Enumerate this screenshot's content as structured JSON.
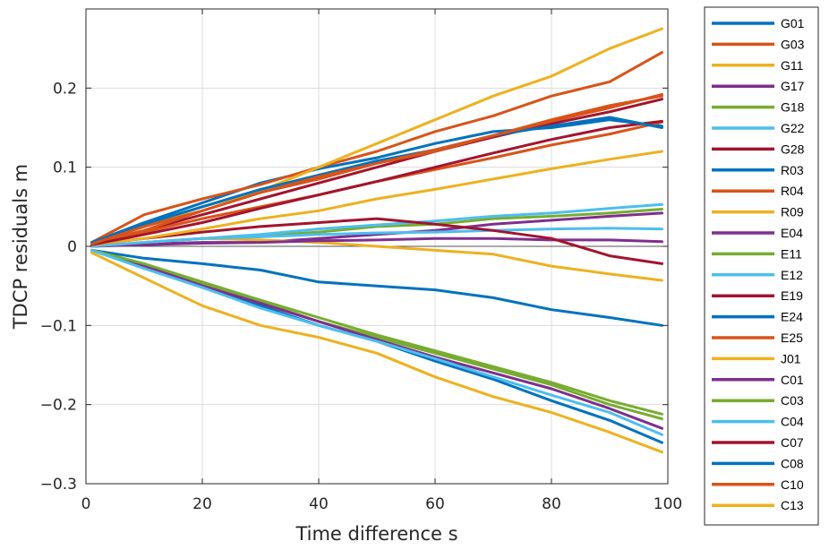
{
  "chart_data": {
    "type": "line",
    "title": "",
    "xlabel": "Time difference s",
    "ylabel": "TDCP residuals m",
    "xlim": [
      0,
      100
    ],
    "ylim": [
      -0.3,
      0.3
    ],
    "xticks": [
      0,
      20,
      40,
      60,
      80,
      100
    ],
    "xtick_labels": [
      "0",
      "20",
      "40",
      "60",
      "80",
      "100"
    ],
    "yticks": [
      -0.3,
      -0.2,
      -0.1,
      0,
      0.1,
      0.2
    ],
    "ytick_labels": [
      "−0.3",
      "−0.2",
      "−0.1",
      "0",
      "0.1",
      "0.2"
    ],
    "grid": true,
    "legend_position": "outside-right",
    "colors": [
      "#0072BD",
      "#D95319",
      "#EDB120",
      "#7E2F8E",
      "#77AC30",
      "#4DBEEE",
      "#A2142F"
    ],
    "series": [
      {
        "name": "G01",
        "x": [
          1,
          10,
          20,
          30,
          40,
          50,
          60,
          70,
          80,
          90,
          99
        ],
        "values": [
          0.005,
          0.03,
          0.055,
          0.08,
          0.098,
          0.112,
          0.13,
          0.145,
          0.15,
          0.16,
          0.152
        ]
      },
      {
        "name": "G03",
        "x": [
          1,
          10,
          20,
          30,
          40,
          50,
          60,
          70,
          80,
          90,
          99
        ],
        "values": [
          0.005,
          0.04,
          0.06,
          0.078,
          0.1,
          0.12,
          0.145,
          0.165,
          0.19,
          0.208,
          0.245
        ]
      },
      {
        "name": "G11",
        "x": [
          1,
          10,
          20,
          30,
          40,
          50,
          60,
          70,
          80,
          90,
          99
        ],
        "values": [
          0.003,
          0.025,
          0.05,
          0.07,
          0.1,
          0.13,
          0.16,
          0.19,
          0.215,
          0.25,
          0.275
        ]
      },
      {
        "name": "G17",
        "x": [
          1,
          10,
          20,
          30,
          40,
          50,
          60,
          70,
          80,
          90,
          99
        ],
        "values": [
          0.0,
          0.003,
          0.005,
          0.005,
          0.01,
          0.015,
          0.02,
          0.028,
          0.033,
          0.038,
          0.042
        ]
      },
      {
        "name": "G18",
        "x": [
          1,
          10,
          20,
          30,
          40,
          50,
          60,
          70,
          80,
          90,
          99
        ],
        "values": [
          0.0,
          0.005,
          0.01,
          0.013,
          0.018,
          0.025,
          0.028,
          0.035,
          0.038,
          0.042,
          0.047
        ]
      },
      {
        "name": "G22",
        "x": [
          1,
          10,
          20,
          30,
          40,
          50,
          60,
          70,
          80,
          90,
          99
        ],
        "values": [
          0.0,
          0.005,
          0.01,
          0.015,
          0.022,
          0.027,
          0.032,
          0.038,
          0.042,
          0.048,
          0.053
        ]
      },
      {
        "name": "G28",
        "x": [
          1,
          10,
          20,
          30,
          40,
          50,
          60,
          70,
          80,
          90,
          99
        ],
        "values": [
          0.003,
          0.02,
          0.04,
          0.06,
          0.08,
          0.1,
          0.12,
          0.138,
          0.155,
          0.17,
          0.186
        ]
      },
      {
        "name": "R03",
        "x": [
          1,
          10,
          20,
          30,
          40,
          50,
          60,
          70,
          80,
          90,
          99
        ],
        "values": [
          -0.005,
          -0.015,
          -0.022,
          -0.03,
          -0.045,
          -0.05,
          -0.055,
          -0.065,
          -0.08,
          -0.09,
          -0.1
        ]
      },
      {
        "name": "R04",
        "x": [
          1,
          10,
          20,
          30,
          40,
          50,
          60,
          70,
          80,
          90,
          99
        ],
        "values": [
          0.003,
          0.02,
          0.045,
          0.068,
          0.085,
          0.105,
          0.12,
          0.14,
          0.16,
          0.178,
          0.19
        ]
      },
      {
        "name": "R09",
        "x": [
          1,
          10,
          20,
          30,
          40,
          50,
          60,
          70,
          80,
          90,
          99
        ],
        "values": [
          0.0,
          0.005,
          0.01,
          0.008,
          0.005,
          0.0,
          -0.005,
          -0.01,
          -0.025,
          -0.035,
          -0.043
        ]
      },
      {
        "name": "E04",
        "x": [
          1,
          10,
          20,
          30,
          40,
          50,
          60,
          70,
          80,
          90,
          99
        ],
        "values": [
          0.0,
          0.002,
          0.004,
          0.005,
          0.007,
          0.008,
          0.01,
          0.01,
          0.008,
          0.008,
          0.006
        ]
      },
      {
        "name": "E11",
        "x": [
          1,
          10,
          20,
          30,
          40,
          50,
          60,
          70,
          80,
          90,
          99
        ],
        "values": [
          -0.005,
          -0.022,
          -0.048,
          -0.07,
          -0.095,
          -0.115,
          -0.135,
          -0.155,
          -0.175,
          -0.2,
          -0.218
        ]
      },
      {
        "name": "E12",
        "x": [
          1,
          10,
          20,
          30,
          40,
          50,
          60,
          70,
          80,
          90,
          99
        ],
        "values": [
          0.0,
          0.005,
          0.01,
          0.012,
          0.015,
          0.017,
          0.018,
          0.02,
          0.022,
          0.023,
          0.022
        ]
      },
      {
        "name": "E19",
        "x": [
          1,
          10,
          20,
          30,
          40,
          50,
          60,
          70,
          80,
          90,
          99
        ],
        "values": [
          0.002,
          0.01,
          0.018,
          0.025,
          0.03,
          0.035,
          0.028,
          0.02,
          0.01,
          -0.012,
          -0.022
        ]
      },
      {
        "name": "E24",
        "x": [
          1,
          10,
          20,
          30,
          40,
          50,
          60,
          70,
          80,
          90,
          99
        ],
        "values": [
          -0.005,
          -0.025,
          -0.05,
          -0.075,
          -0.1,
          -0.12,
          -0.145,
          -0.168,
          -0.195,
          -0.22,
          -0.248
        ]
      },
      {
        "name": "E25",
        "x": [
          1,
          10,
          20,
          30,
          40,
          50,
          60,
          70,
          80,
          90,
          99
        ],
        "values": [
          0.003,
          0.018,
          0.035,
          0.05,
          0.065,
          0.082,
          0.097,
          0.112,
          0.128,
          0.142,
          0.157
        ]
      },
      {
        "name": "J01",
        "x": [
          1,
          10,
          20,
          30,
          40,
          50,
          60,
          70,
          80,
          90,
          99
        ],
        "values": [
          0.002,
          0.01,
          0.022,
          0.035,
          0.045,
          0.06,
          0.072,
          0.085,
          0.098,
          0.11,
          0.12
        ]
      },
      {
        "name": "C01",
        "x": [
          1,
          10,
          20,
          30,
          40,
          50,
          60,
          70,
          80,
          90,
          99
        ],
        "values": [
          -0.005,
          -0.025,
          -0.05,
          -0.072,
          -0.095,
          -0.118,
          -0.14,
          -0.16,
          -0.18,
          -0.205,
          -0.23
        ]
      },
      {
        "name": "C03",
        "x": [
          1,
          10,
          20,
          30,
          40,
          50,
          60,
          70,
          80,
          90,
          99
        ],
        "values": [
          -0.005,
          -0.022,
          -0.045,
          -0.068,
          -0.09,
          -0.112,
          -0.132,
          -0.152,
          -0.172,
          -0.195,
          -0.212
        ]
      },
      {
        "name": "C04",
        "x": [
          1,
          10,
          20,
          30,
          40,
          50,
          60,
          70,
          80,
          90,
          99
        ],
        "values": [
          -0.005,
          -0.028,
          -0.052,
          -0.078,
          -0.1,
          -0.12,
          -0.142,
          -0.165,
          -0.188,
          -0.21,
          -0.238
        ]
      },
      {
        "name": "C07",
        "x": [
          1,
          10,
          20,
          30,
          40,
          50,
          60,
          70,
          80,
          90,
          99
        ],
        "values": [
          0.002,
          0.015,
          0.03,
          0.048,
          0.065,
          0.082,
          0.1,
          0.118,
          0.135,
          0.15,
          0.158
        ]
      },
      {
        "name": "C08",
        "x": [
          1,
          10,
          20,
          30,
          40,
          50,
          60,
          70,
          80,
          90,
          99
        ],
        "values": [
          0.005,
          0.028,
          0.05,
          0.072,
          0.09,
          0.108,
          0.122,
          0.14,
          0.152,
          0.163,
          0.15
        ]
      },
      {
        "name": "C10",
        "x": [
          1,
          10,
          20,
          30,
          40,
          50,
          60,
          70,
          80,
          90,
          99
        ],
        "values": [
          0.003,
          0.025,
          0.045,
          0.068,
          0.088,
          0.105,
          0.122,
          0.14,
          0.158,
          0.175,
          0.192
        ]
      },
      {
        "name": "C13",
        "x": [
          1,
          10,
          20,
          30,
          40,
          50,
          60,
          70,
          80,
          90,
          99
        ],
        "values": [
          -0.008,
          -0.04,
          -0.075,
          -0.1,
          -0.115,
          -0.135,
          -0.165,
          -0.19,
          -0.21,
          -0.235,
          -0.26
        ]
      }
    ]
  }
}
